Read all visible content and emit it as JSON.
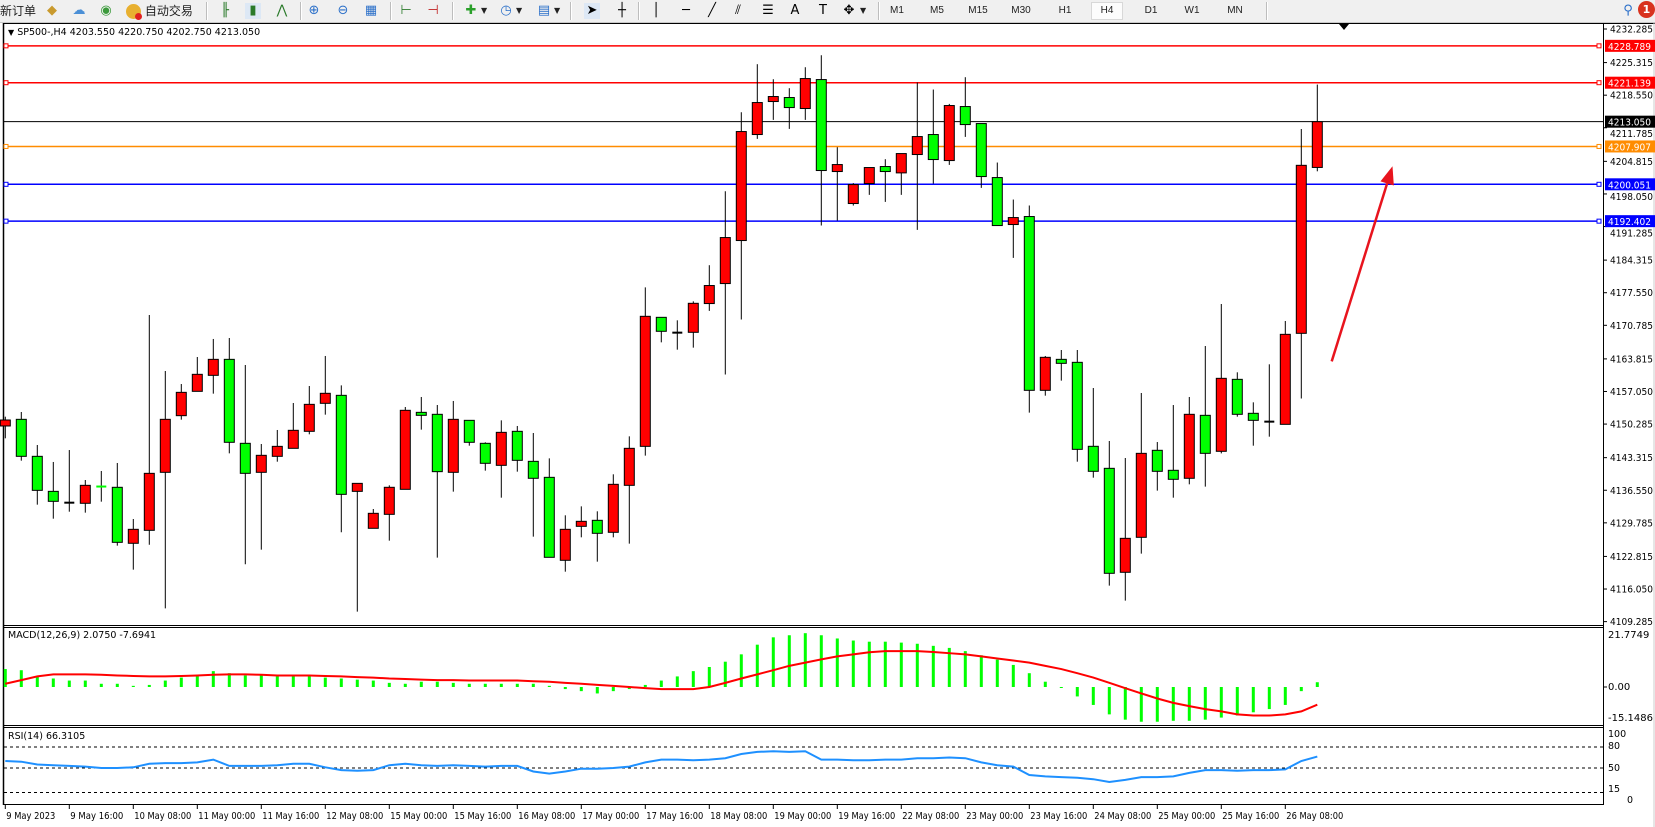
{
  "toolbar": {
    "new_order_label": "新订单",
    "auto_trading_label": "自动交易",
    "tools": [
      "book-icon",
      "cloud-icon",
      "signal-icon",
      "auto-trading-icon",
      "bar-chart-icon",
      "candlestick-icon",
      "line-chart-icon",
      "zoom-in-icon",
      "zoom-out-icon",
      "tile-windows-icon",
      "chart-shift-icon",
      "autoscroll-icon",
      "new-chart-icon",
      "periods-icon",
      "templates-icon",
      "cursor-icon",
      "crosshair-icon",
      "vertical-line-icon",
      "horizontal-line-icon",
      "trendline-icon",
      "equidistant-channel-icon",
      "fibonacci-icon",
      "text-icon",
      "text-label-icon",
      "shapes-icon"
    ],
    "timeframes": [
      "M1",
      "M5",
      "M15",
      "M30",
      "H1",
      "H4",
      "D1",
      "W1",
      "MN"
    ],
    "active_timeframe": "H4",
    "notification_count": "1"
  },
  "chart": {
    "title": "SP500-,H4  4203.550 4220.750 4202.750 4213.050",
    "macd_label": "MACD(12,26,9) 2.0750 -7.6941",
    "rsi_label": "RSI(14) 66.3105"
  },
  "chart_data": {
    "type": "candlestick",
    "symbol": "SP500-",
    "timeframe": "H4",
    "colors": {
      "bull": "#ff0000",
      "bear": "#00ff00",
      "doji": "#000000",
      "outline": "#000000"
    },
    "price_axis": {
      "range": [
        4109.285,
        4232.285
      ],
      "ticks": [
        "4232.285",
        "4225.315",
        "4218.550",
        "4211.785",
        "4204.815",
        "4198.050",
        "4191.285",
        "4184.315",
        "4177.550",
        "4170.785",
        "4163.815",
        "4157.050",
        "4150.285",
        "4143.315",
        "4136.550",
        "4129.785",
        "4122.815",
        "4116.050",
        "4109.285"
      ]
    },
    "time_axis": {
      "labels": [
        "9 May 2023",
        "9 May 16:00",
        "10 May 08:00",
        "11 May 00:00",
        "11 May 16:00",
        "12 May 08:00",
        "15 May 00:00",
        "15 May 16:00",
        "16 May 08:00",
        "17 May 00:00",
        "17 May 16:00",
        "18 May 08:00",
        "19 May 00:00",
        "19 May 16:00",
        "22 May 08:00",
        "23 May 00:00",
        "23 May 16:00",
        "24 May 08:00",
        "25 May 00:00",
        "25 May 16:00",
        "26 May 08:00"
      ],
      "bars_per_label": 4
    },
    "ohlc": [
      [
        4149.89,
        4151.82,
        4147.33,
        4151.13
      ],
      [
        4151.27,
        4152.79,
        4142.69,
        4143.59
      ],
      [
        4143.59,
        4145.94,
        4133.56,
        4136.53
      ],
      [
        4136.32,
        4142.42,
        4130.65,
        4134.25
      ],
      [
        4133.97,
        4144.9,
        4132.1,
        4133.97
      ],
      [
        4133.84,
        4138.68,
        4131.9,
        4137.57
      ],
      [
        4137.32,
        4140.55,
        4134.18,
        4137.3
      ],
      [
        4137.16,
        4142.21,
        4125.05,
        4125.74
      ],
      [
        4125.54,
        4130.58,
        4120.07,
        4128.44
      ],
      [
        4128.23,
        4172.93,
        4125.25,
        4140.06
      ],
      [
        4140.27,
        4161.3,
        4112.04,
        4151.27
      ],
      [
        4152.03,
        4158.6,
        4151.2,
        4156.87
      ],
      [
        4157.08,
        4164.21,
        4157.08,
        4160.61
      ],
      [
        4160.4,
        4167.95,
        4156.6,
        4163.72
      ],
      [
        4163.72,
        4168.15,
        4144.21,
        4146.5
      ],
      [
        4146.29,
        4162.55,
        4121.18,
        4140.06
      ],
      [
        4140.27,
        4146.15,
        4124.22,
        4143.8
      ],
      [
        4143.59,
        4149.06,
        4142.48,
        4145.66
      ],
      [
        4145.25,
        4154.66,
        4145.25,
        4148.99
      ],
      [
        4148.78,
        4158.19,
        4148.16,
        4154.38
      ],
      [
        4154.59,
        4164.42,
        4152.24,
        4156.67
      ],
      [
        4156.25,
        4158.33,
        4127.82,
        4135.7
      ],
      [
        4136.32,
        4137.98,
        4111.35,
        4137.98
      ],
      [
        4128.65,
        4132.66,
        4128.65,
        4131.76
      ],
      [
        4131.55,
        4137.57,
        4126.09,
        4137.16
      ],
      [
        4136.74,
        4153.83,
        4136.74,
        4153.14
      ],
      [
        4152.72,
        4155.91,
        4149.13,
        4152.1
      ],
      [
        4152.31,
        4154.24,
        4122.56,
        4140.41
      ],
      [
        4140.27,
        4155.08,
        4136.26,
        4151.27
      ],
      [
        4151.06,
        4151.06,
        4145.8,
        4146.5
      ],
      [
        4146.29,
        4146.5,
        4140.62,
        4142.14
      ],
      [
        4141.72,
        4151.06,
        4135.01,
        4148.57
      ],
      [
        4148.78,
        4149.89,
        4140.41,
        4142.76
      ],
      [
        4142.55,
        4148.43,
        4126.92,
        4139.03
      ],
      [
        4139.23,
        4143.17,
        4122.63,
        4122.63
      ],
      [
        4122.01,
        4131.35,
        4119.65,
        4128.44
      ],
      [
        4129.06,
        4133.21,
        4126.78,
        4130.1
      ],
      [
        4130.31,
        4132.18,
        4121.73,
        4127.61
      ],
      [
        4127.82,
        4139.86,
        4126.78,
        4137.78
      ],
      [
        4137.57,
        4147.74,
        4125.47,
        4145.25
      ],
      [
        4145.66,
        4178.67,
        4143.73,
        4172.65
      ],
      [
        4172.44,
        4172.44,
        4167.25,
        4169.54
      ],
      [
        4169.26,
        4171.82,
        4165.73,
        4169.26
      ],
      [
        4169.33,
        4175.76,
        4166.15,
        4175.35
      ],
      [
        4175.3,
        4183.26,
        4173.78,
        4179.04
      ],
      [
        4179.45,
        4198.62,
        4160.57,
        4189.0
      ],
      [
        4188.38,
        4215.01,
        4171.98,
        4211.0
      ],
      [
        4210.38,
        4224.98,
        4209.48,
        4217.02
      ],
      [
        4217.23,
        4221.86,
        4213.42,
        4218.27
      ],
      [
        4218.06,
        4220.0,
        4211.55,
        4215.98
      ],
      [
        4215.78,
        4224.35,
        4213.42,
        4222.0
      ],
      [
        4221.79,
        4226.84,
        4191.49,
        4202.91
      ],
      [
        4202.7,
        4207.75,
        4192.53,
        4204.15
      ],
      [
        4196.06,
        4200.3,
        4195.64,
        4200.0
      ],
      [
        4200.21,
        4203.53,
        4197.86,
        4203.53
      ],
      [
        4203.74,
        4205.26,
        4196.4,
        4202.7
      ],
      [
        4202.42,
        4206.43,
        4197.86,
        4206.43
      ],
      [
        4206.23,
        4221.17,
        4190.59,
        4209.96
      ],
      [
        4210.38,
        4219.72,
        4200.21,
        4205.19
      ],
      [
        4204.98,
        4216.74,
        4204.08,
        4216.4
      ],
      [
        4216.19,
        4222.28,
        4209.89,
        4212.45
      ],
      [
        4212.66,
        4212.66,
        4199.31,
        4201.66
      ],
      [
        4201.45,
        4204.57,
        4191.49,
        4191.49
      ],
      [
        4191.7,
        4196.89,
        4184.78,
        4193.15
      ],
      [
        4193.36,
        4195.64,
        4152.65,
        4157.29
      ],
      [
        4157.29,
        4164.42,
        4156.18,
        4164.14
      ],
      [
        4163.72,
        4165.66,
        4159.3,
        4162.89
      ],
      [
        4163.1,
        4165.66,
        4142.48,
        4145.04
      ],
      [
        4145.67,
        4157.77,
        4139.16,
        4140.48
      ],
      [
        4141.1,
        4146.77,
        4116.75,
        4119.31
      ],
      [
        4119.52,
        4143.25,
        4113.63,
        4126.57
      ],
      [
        4126.78,
        4156.74,
        4123.39,
        4144.21
      ],
      [
        4144.84,
        4146.56,
        4136.47,
        4140.48
      ],
      [
        4140.69,
        4154.24,
        4135.01,
        4138.82
      ],
      [
        4139.03,
        4155.91,
        4137.78,
        4152.31
      ],
      [
        4152.1,
        4166.49,
        4137.3,
        4144.21
      ],
      [
        4144.63,
        4175.21,
        4144.21,
        4159.78
      ],
      [
        4159.57,
        4161.03,
        4151.82,
        4152.31
      ],
      [
        4152.52,
        4154.8,
        4145.8,
        4151.06
      ],
      [
        4150.79,
        4162.69,
        4147.67,
        4150.79
      ],
      [
        4150.23,
        4171.68,
        4150.23,
        4168.91
      ],
      [
        4169.12,
        4211.53,
        4155.6,
        4203.99
      ],
      [
        4203.55,
        4220.75,
        4202.75,
        4213.05
      ]
    ],
    "bid_line": {
      "price": 4213.05,
      "label": "4213.050",
      "color": "#000000"
    },
    "horizontal_lines": [
      {
        "price": 4228.789,
        "label": "4228.789",
        "color": "#ff0000"
      },
      {
        "price": 4221.139,
        "label": "4221.139",
        "color": "#ff0000"
      },
      {
        "price": 4207.907,
        "label": "4207.907",
        "color": "#ff8c00"
      },
      {
        "price": 4200.051,
        "label": "4200.051",
        "color": "#0000ff"
      },
      {
        "price": 4192.402,
        "label": "4192.402",
        "color": "#0000ff"
      }
    ],
    "arrow": {
      "color": "#e8141e",
      "from_price": 4163.3,
      "to_price": 4203.8,
      "from_bar": 82.9,
      "to_bar": 86.7
    },
    "macd": {
      "params": "12,26,9",
      "ticks": [
        "21.7749",
        "0.00",
        "-15.1486"
      ],
      "range": [
        -15.1486,
        21.7749
      ],
      "histogram_color": "#00ff00",
      "signal_color": "#ff0000",
      "histogram": [
        7.8,
        7.3,
        4.6,
        3.7,
        2.8,
        2.8,
        1.4,
        1.4,
        0.5,
        0.9,
        2.8,
        4.1,
        5.0,
        6.9,
        6.0,
        5.0,
        5.0,
        4.6,
        4.6,
        4.6,
        4.1,
        3.7,
        3.2,
        2.8,
        1.8,
        1.4,
        2.3,
        2.3,
        1.8,
        1.4,
        1.4,
        1.4,
        1.4,
        1.4,
        0.5,
        -0.9,
        -1.8,
        -2.8,
        -1.8,
        -0.9,
        0.9,
        2.8,
        4.6,
        6.9,
        8.7,
        11.0,
        14.2,
        18.4,
        21.6,
        22.5,
        23.4,
        22.5,
        21.1,
        20.2,
        19.7,
        19.7,
        19.3,
        18.8,
        17.9,
        17.0,
        15.6,
        13.8,
        11.9,
        9.6,
        6.0,
        2.3,
        0,
        -4.1,
        -7.8,
        -11.9,
        -14.2,
        -15.1,
        -15.1,
        -14.7,
        -14.7,
        -14.2,
        -13.3,
        -12.4,
        -11.0,
        -9.6,
        -7.8,
        -1.8,
        2.075
      ],
      "signal": [
        1.4,
        3.0,
        4.6,
        5.5,
        5.5,
        5.5,
        5.3,
        5.0,
        4.8,
        4.6,
        4.6,
        4.8,
        5.0,
        5.3,
        5.5,
        5.5,
        5.3,
        5.0,
        5.0,
        5.0,
        4.8,
        4.6,
        4.3,
        4.1,
        3.7,
        3.5,
        3.2,
        3.0,
        3.0,
        2.8,
        2.8,
        2.8,
        2.8,
        2.5,
        2.3,
        1.8,
        1.4,
        0.9,
        0.5,
        0,
        -0.5,
        -0.9,
        -0.9,
        -0.9,
        0,
        1.8,
        3.7,
        5.5,
        7.3,
        9.2,
        10.6,
        12.0,
        13.3,
        14.2,
        15.1,
        15.6,
        15.6,
        15.6,
        15.2,
        14.7,
        14.2,
        13.3,
        12.4,
        11.5,
        10.6,
        9.2,
        7.8,
        6.0,
        4.1,
        1.8,
        -0.5,
        -2.8,
        -5.0,
        -6.9,
        -8.3,
        -9.6,
        -10.6,
        -11.9,
        -12.4,
        -12.4,
        -11.9,
        -10.6,
        -7.6941
      ]
    },
    "rsi": {
      "period": 14,
      "ticks": [
        "100",
        "80",
        "50",
        "15",
        "0"
      ],
      "levels": [
        80,
        50,
        15
      ],
      "color": "#1e90ff",
      "values": [
        60,
        59,
        55,
        54,
        53,
        52,
        50,
        50,
        51,
        56,
        57,
        57,
        58,
        62,
        53,
        53,
        53,
        54,
        56,
        56,
        51,
        47,
        46,
        47,
        54,
        56,
        54,
        53,
        54,
        53,
        52,
        53,
        53,
        45,
        42,
        45,
        49,
        49,
        50,
        52,
        58,
        62,
        62,
        61,
        62,
        64,
        70,
        73,
        74,
        73,
        74,
        62,
        62,
        61,
        61,
        62,
        62,
        64,
        64,
        65,
        64,
        58,
        54,
        52,
        40,
        38,
        37,
        36,
        34,
        30,
        33,
        37,
        37,
        38,
        43,
        47,
        47,
        46,
        47,
        47,
        48,
        60,
        66.3105
      ]
    }
  }
}
